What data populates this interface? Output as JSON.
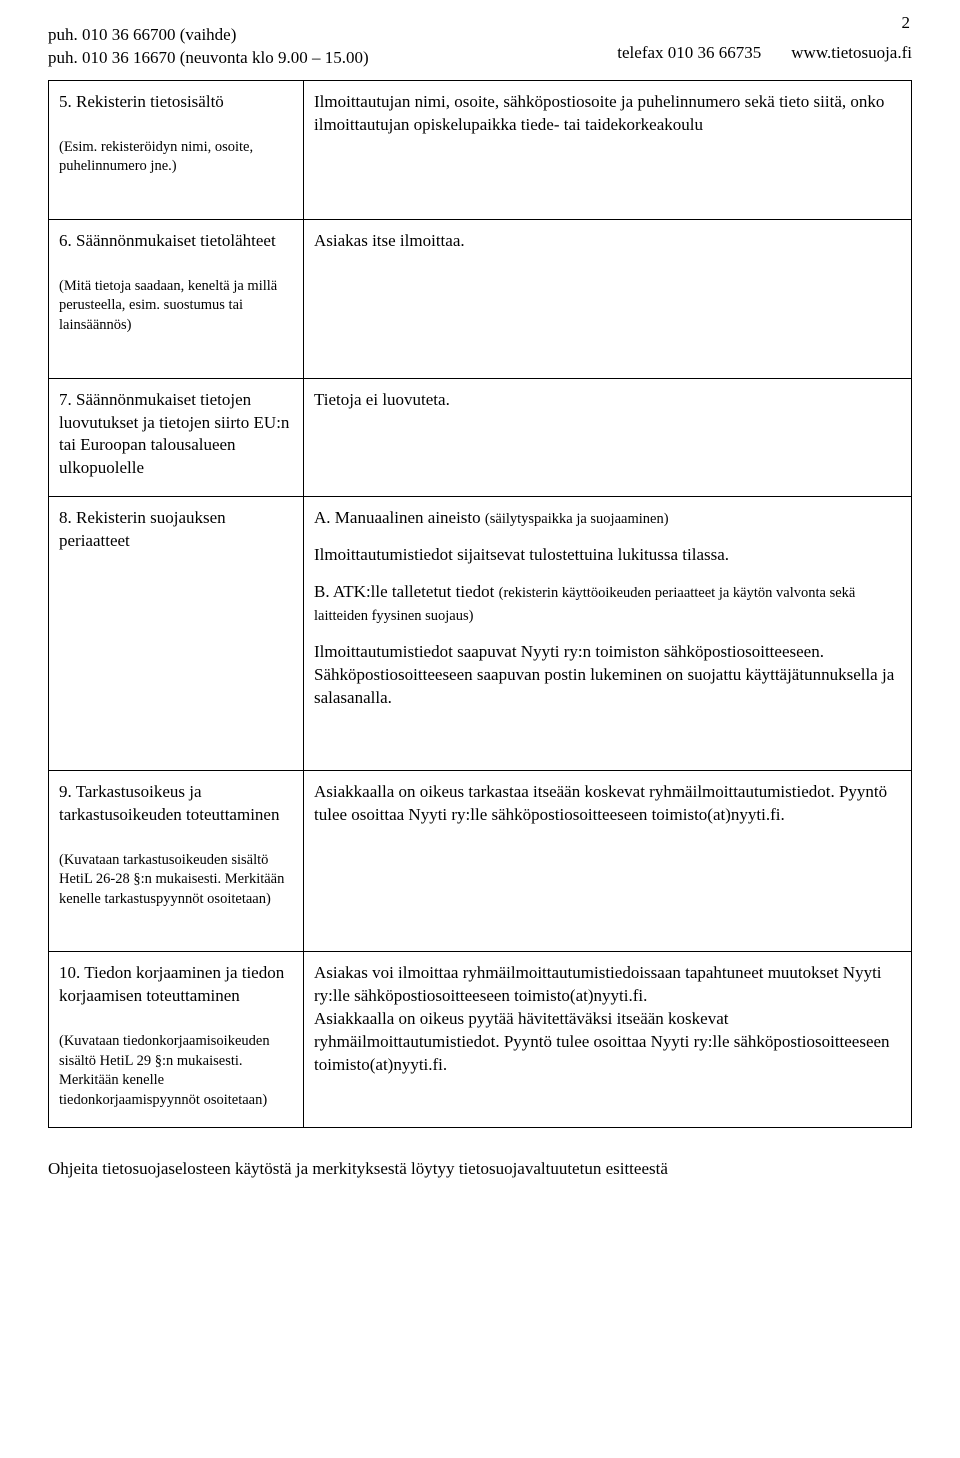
{
  "pageNumber": "2",
  "header": {
    "line1": "puh. 010 36 66700 (vaihde)",
    "line2": "puh. 010 36 16670 (neuvonta klo 9.00 – 15.00)",
    "fax": "telefax 010 36 66735",
    "url": "www.tietosuoja.fi"
  },
  "rows": {
    "r5": {
      "title": "5. Rekisterin tietosisältö",
      "desc": "(Esim. rekisteröidyn nimi, osoite, puhelinnumero jne.)",
      "content": "Ilmoittautujan nimi, osoite, sähköpostiosoite ja puhelinnumero sekä tieto siitä, onko ilmoittautujan opiskelupaikka tiede- tai taidekorkeakoulu"
    },
    "r6": {
      "title": "6. Säännönmukaiset tietolähteet",
      "desc": "(Mitä tietoja saadaan, keneltä ja millä perusteella, esim. suostumus tai lainsäännös)",
      "content": "Asiakas itse ilmoittaa."
    },
    "r7": {
      "title": "7. Säännönmukaiset tietojen luovutukset ja tietojen siirto EU:n tai Euroopan talousalueen ulkopuolelle",
      "content": "Tietoja ei luovuteta."
    },
    "r8": {
      "title": "8. Rekisterin suojauksen periaatteet",
      "pA_pre": "A. Manuaalinen aineisto ",
      "pA_small": "(säilytyspaikka ja suojaaminen)",
      "pA2": "Ilmoittautumistiedot sijaitsevat tulostettuina lukitussa tilassa.",
      "pB_pre": "B. ATK:lle talletetut tiedot ",
      "pB_small": "(rekisterin käyttöoikeuden periaatteet ja käytön valvonta sekä laitteiden fyysinen suojaus)",
      "pB2": "Ilmoittautumistiedot saapuvat Nyyti ry:n toimiston sähköpostiosoitteeseen. Sähköpostiosoitteeseen saapuvan postin lukeminen on suojattu käyttäjätunnuksella ja salasanalla."
    },
    "r9": {
      "title": "9. Tarkastusoikeus ja tarkastusoikeuden toteuttaminen",
      "desc": "(Kuvataan tarkastusoikeuden sisältö HetiL 26-28 §:n mukaisesti. Merkitään kenelle tarkastuspyynnöt osoitetaan)",
      "content": "Asiakkaalla on oikeus tarkastaa itseään koskevat ryhmäilmoittautumistiedot. Pyyntö tulee osoittaa Nyyti ry:lle sähköpostiosoitteeseen toimisto(at)nyyti.fi."
    },
    "r10": {
      "title": "10. Tiedon korjaaminen ja tiedon korjaamisen toteuttaminen",
      "desc": "(Kuvataan tiedonkorjaamisoikeuden sisältö HetiL 29 §:n mukaisesti. Merkitään kenelle tiedonkorjaamispyynnöt osoitetaan)",
      "content": "Asiakas voi ilmoittaa ryhmäilmoittautumistiedoissaan tapahtuneet muutokset Nyyti ry:lle sähköpostiosoitteeseen toimisto(at)nyyti.fi.\nAsiakkaalla on oikeus pyytää hävitettäväksi itseään koskevat ryhmäilmoittautumistiedot. Pyyntö tulee osoittaa Nyyti ry:lle sähköpostiosoitteeseen toimisto(at)nyyti.fi."
    }
  },
  "footer": "Ohjeita tietosuojaselosteen käytöstä ja merkityksestä löytyy tietosuojavaltuutetun esitteestä"
}
